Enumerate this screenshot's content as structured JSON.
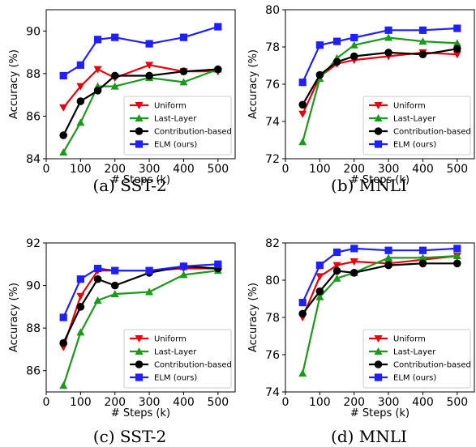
{
  "chart_data": [
    {
      "type": "line",
      "caption": "(a)  SST-2",
      "xlabel": "# Steps (k)",
      "ylabel": "Accuracy (%)",
      "xlim": [
        0,
        550
      ],
      "ylim": [
        84,
        91
      ],
      "xticks": [
        0,
        100,
        200,
        300,
        400,
        500
      ],
      "yticks": [
        84,
        86,
        88,
        90
      ],
      "legend": "lower-right",
      "x": [
        50,
        100,
        150,
        200,
        300,
        400,
        500
      ],
      "series": [
        {
          "name": "Uniform",
          "color": "#e8000b",
          "marker": "triangle-down",
          "values": [
            86.4,
            87.4,
            88.2,
            87.8,
            88.4,
            88.1,
            88.1
          ]
        },
        {
          "name": "Last-Layer",
          "color": "#1a9a1a",
          "marker": "triangle-up",
          "values": [
            84.3,
            85.7,
            87.4,
            87.4,
            87.8,
            87.6,
            88.2
          ]
        },
        {
          "name": "Contribution-based",
          "color": "#000000",
          "marker": "circle",
          "values": [
            85.1,
            86.7,
            87.2,
            87.9,
            87.9,
            88.1,
            88.2
          ]
        },
        {
          "name": "ELM (ours)",
          "color": "#1f1fff",
          "marker": "square",
          "values": [
            87.9,
            88.4,
            89.6,
            89.7,
            89.4,
            89.7,
            90.2
          ]
        }
      ]
    },
    {
      "type": "line",
      "caption": "(b)  MNLI",
      "xlabel": "# Steps (k)",
      "ylabel": "Accuracy (%)",
      "xlim": [
        0,
        550
      ],
      "ylim": [
        72,
        80
      ],
      "xticks": [
        0,
        100,
        200,
        300,
        400,
        500
      ],
      "yticks": [
        72,
        74,
        76,
        78,
        80
      ],
      "legend": "lower-right",
      "x": [
        50,
        100,
        150,
        200,
        300,
        400,
        500
      ],
      "series": [
        {
          "name": "Uniform",
          "color": "#e8000b",
          "marker": "triangle-down",
          "values": [
            74.4,
            76.4,
            77.1,
            77.3,
            77.5,
            77.7,
            77.6
          ]
        },
        {
          "name": "Last-Layer",
          "color": "#1a9a1a",
          "marker": "triangle-up",
          "values": [
            72.9,
            76.3,
            77.4,
            78.1,
            78.5,
            78.3,
            78.2
          ]
        },
        {
          "name": "Contribution-based",
          "color": "#000000",
          "marker": "circle",
          "values": [
            74.9,
            76.5,
            77.2,
            77.5,
            77.7,
            77.6,
            77.9
          ]
        },
        {
          "name": "ELM (ours)",
          "color": "#1f1fff",
          "marker": "square",
          "values": [
            76.1,
            78.1,
            78.3,
            78.5,
            78.9,
            78.9,
            79.0
          ]
        }
      ]
    },
    {
      "type": "line",
      "caption": "(c)  SST-2",
      "xlabel": "# Steps (k)",
      "ylabel": "Accuracy (%)",
      "xlim": [
        0,
        550
      ],
      "ylim": [
        85,
        92
      ],
      "xticks": [
        0,
        100,
        200,
        300,
        400,
        500
      ],
      "yticks": [
        86,
        88,
        90,
        92
      ],
      "legend": "lower-right",
      "x": [
        50,
        100,
        150,
        200,
        300,
        400,
        500
      ],
      "series": [
        {
          "name": "Uniform",
          "color": "#e8000b",
          "marker": "triangle-down",
          "values": [
            87.1,
            89.5,
            90.7,
            90.7,
            90.7,
            90.8,
            90.8
          ]
        },
        {
          "name": "Last-Layer",
          "color": "#1a9a1a",
          "marker": "triangle-up",
          "values": [
            85.3,
            87.8,
            89.3,
            89.6,
            89.7,
            90.5,
            90.7
          ]
        },
        {
          "name": "Contribution-based",
          "color": "#000000",
          "marker": "circle",
          "values": [
            87.3,
            89.0,
            90.3,
            90.0,
            90.6,
            90.9,
            90.8
          ]
        },
        {
          "name": "ELM (ours)",
          "color": "#1f1fff",
          "marker": "square",
          "values": [
            88.5,
            90.3,
            90.8,
            90.7,
            90.7,
            90.9,
            91.0
          ]
        }
      ]
    },
    {
      "type": "line",
      "caption": "(d)  MNLI",
      "xlabel": "# Steps (k)",
      "ylabel": "Accuracy (%)",
      "xlim": [
        0,
        550
      ],
      "ylim": [
        74,
        82
      ],
      "xticks": [
        0,
        100,
        200,
        300,
        400,
        500
      ],
      "yticks": [
        74,
        76,
        78,
        80,
        82
      ],
      "legend": "lower-right",
      "x": [
        50,
        100,
        150,
        200,
        300,
        400,
        500
      ],
      "series": [
        {
          "name": "Uniform",
          "color": "#e8000b",
          "marker": "triangle-down",
          "values": [
            78.0,
            80.2,
            80.8,
            81.0,
            80.9,
            81.1,
            81.3
          ]
        },
        {
          "name": "Last-Layer",
          "color": "#1a9a1a",
          "marker": "triangle-up",
          "values": [
            75.0,
            79.1,
            80.1,
            80.4,
            81.2,
            81.2,
            81.3
          ]
        },
        {
          "name": "Contribution-based",
          "color": "#000000",
          "marker": "circle",
          "values": [
            78.2,
            79.4,
            80.5,
            80.4,
            80.8,
            80.9,
            80.9
          ]
        },
        {
          "name": "ELM (ours)",
          "color": "#1f1fff",
          "marker": "square",
          "values": [
            78.8,
            80.8,
            81.5,
            81.7,
            81.6,
            81.6,
            81.7
          ]
        }
      ]
    }
  ]
}
